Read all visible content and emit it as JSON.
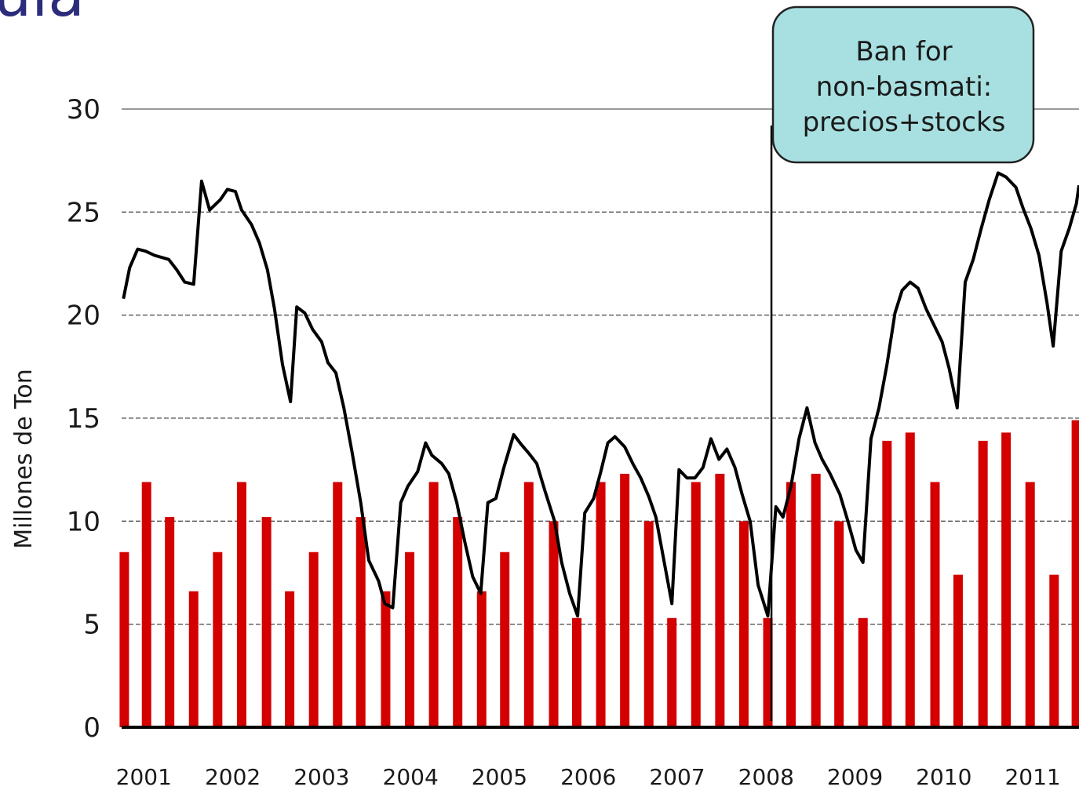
{
  "chart_data": {
    "type": "bar_line",
    "title": "ula",
    "y_label": "Millones de Ton",
    "xlim": [
      2000.75,
      2011.52
    ],
    "xticks": [
      2001,
      2002,
      2003,
      2004,
      2005,
      2006,
      2007,
      2008,
      2009,
      2010,
      2011
    ],
    "ylim": [
      0,
      30
    ],
    "yticks": [
      0,
      5,
      10,
      15,
      20,
      25,
      30
    ],
    "grid": true,
    "bars": {
      "color": "#d40000",
      "x": [
        2000.78,
        2001.03,
        2001.29,
        2001.56,
        2001.83,
        2002.1,
        2002.38,
        2002.64,
        2002.91,
        2003.18,
        2003.44,
        2003.72,
        2003.99,
        2004.26,
        2004.53,
        2004.8,
        2005.06,
        2005.33,
        2005.61,
        2005.87,
        2006.14,
        2006.41,
        2006.68,
        2006.94,
        2007.21,
        2007.48,
        2007.75,
        2008.02,
        2008.28,
        2008.56,
        2008.82,
        2009.09,
        2009.36,
        2009.62,
        2009.9,
        2010.16,
        2010.44,
        2010.7,
        2010.97,
        2011.24,
        2011.49
      ],
      "values": [
        8.5,
        11.9,
        10.2,
        6.6,
        8.5,
        11.9,
        10.2,
        6.6,
        8.5,
        11.9,
        10.2,
        6.6,
        8.5,
        11.9,
        10.2,
        6.6,
        8.5,
        11.9,
        10,
        5.3,
        11.9,
        12.3,
        10,
        5.3,
        11.9,
        12.3,
        10,
        5.3,
        11.9,
        12.3,
        10,
        5.3,
        13.9,
        14.3,
        11.9,
        7.4,
        13.9,
        14.3,
        11.9,
        7.4,
        14.9
      ]
    },
    "line": {
      "color": "#000000",
      "x": [
        2000.77,
        2000.84,
        2000.93,
        2001.02,
        2001.12,
        2001.28,
        2001.37,
        2001.46,
        2001.56,
        2001.65,
        2001.74,
        2001.86,
        2001.94,
        2002.03,
        2002.1,
        2002.21,
        2002.3,
        2002.39,
        2002.47,
        2002.56,
        2002.65,
        2002.72,
        2002.81,
        2002.9,
        2003.0,
        2003.07,
        2003.16,
        2003.25,
        2003.34,
        2003.44,
        2003.53,
        2003.64,
        2003.71,
        2003.8,
        2003.89,
        2003.97,
        2004.08,
        2004.17,
        2004.24,
        2004.35,
        2004.43,
        2004.52,
        2004.61,
        2004.7,
        2004.79,
        2004.87,
        2004.96,
        2005.05,
        2005.16,
        2005.25,
        2005.33,
        2005.42,
        2005.51,
        2005.62,
        2005.7,
        2005.79,
        2005.88,
        2005.96,
        2006.06,
        2006.14,
        2006.22,
        2006.3,
        2006.41,
        2006.5,
        2006.59,
        2006.68,
        2006.76,
        2006.85,
        2006.94,
        2007.02,
        2007.11,
        2007.2,
        2007.29,
        2007.38,
        2007.47,
        2007.56,
        2007.65,
        2007.73,
        2007.82,
        2007.91,
        2008.02,
        2008.11,
        2008.19,
        2008.28,
        2008.37,
        2008.46,
        2008.55,
        2008.63,
        2008.72,
        2008.83,
        2008.92,
        2009.01,
        2009.09,
        2009.18,
        2009.27,
        2009.36,
        2009.45,
        2009.53,
        2009.62,
        2009.71,
        2009.8,
        2009.89,
        2009.98,
        2010.06,
        2010.15,
        2010.24,
        2010.33,
        2010.42,
        2010.51,
        2010.61,
        2010.7,
        2010.81,
        2010.89,
        2010.98,
        2011.07,
        2011.16,
        2011.23,
        2011.32,
        2011.41,
        2011.49,
        2011.52
      ],
      "values": [
        20.8,
        22.3,
        23.2,
        23.1,
        22.9,
        22.7,
        22.2,
        21.6,
        21.5,
        26.5,
        25.1,
        25.6,
        26.1,
        26.0,
        25.1,
        24.4,
        23.5,
        22.2,
        20.3,
        17.6,
        15.8,
        20.4,
        20.1,
        19.3,
        18.7,
        17.7,
        17.2,
        15.5,
        13.4,
        10.9,
        8.1,
        7.1,
        6.0,
        5.8,
        10.9,
        11.7,
        12.4,
        13.8,
        13.2,
        12.8,
        12.3,
        10.9,
        9.0,
        7.3,
        6.5,
        10.9,
        11.1,
        12.6,
        14.2,
        13.7,
        13.3,
        12.8,
        11.5,
        10.0,
        8.0,
        6.5,
        5.4,
        10.4,
        11.1,
        12.4,
        13.8,
        14.1,
        13.6,
        12.8,
        12.1,
        11.2,
        10.2,
        8.1,
        6.0,
        12.5,
        12.1,
        12.1,
        12.6,
        14.0,
        13.0,
        13.5,
        12.6,
        11.3,
        10.0,
        6.9,
        5.4,
        10.7,
        10.2,
        11.7,
        14.0,
        15.5,
        13.8,
        13.0,
        12.3,
        11.3,
        10.0,
        8.6,
        8.0,
        14.0,
        15.5,
        17.6,
        20.1,
        21.2,
        21.6,
        21.3,
        20.3,
        19.5,
        18.7,
        17.4,
        15.5,
        21.6,
        22.7,
        24.2,
        25.6,
        26.9,
        26.7,
        26.2,
        25.2,
        24.2,
        22.9,
        20.6,
        18.5,
        23.1,
        24.2,
        25.4,
        26.3
      ]
    },
    "annotation": {
      "x": 2008.06,
      "lines": [
        "Ban for",
        "non-basmati:",
        "precios+stocks"
      ]
    }
  }
}
